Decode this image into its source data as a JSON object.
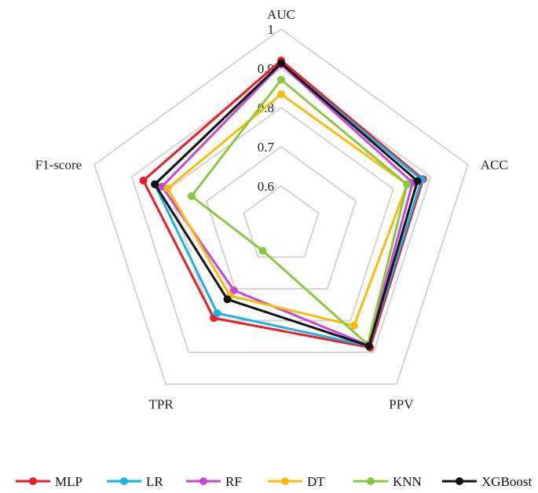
{
  "chart_data": {
    "type": "radar",
    "axes": [
      "AUC",
      "ACC",
      "PPV",
      "TPR",
      "F1-score"
    ],
    "rmin": 0.5,
    "rmax": 1.0,
    "ticks": [
      0.6,
      0.7,
      0.8,
      0.9,
      1
    ],
    "tick_labels": [
      "0.6",
      "0.7",
      "0.8",
      "0.9",
      "1"
    ],
    "grid": true,
    "legend_position": "bottom",
    "series": [
      {
        "name": "MLP",
        "color": "#ee1c25",
        "values": [
          0.92,
          0.88,
          0.885,
          0.792,
          0.869
        ]
      },
      {
        "name": "LR",
        "color": "#1ab2e8",
        "values": [
          0.912,
          0.876,
          0.88,
          0.777,
          0.839
        ]
      },
      {
        "name": "RF",
        "color": "#c746d6",
        "values": [
          0.91,
          0.852,
          0.878,
          0.705,
          0.819
        ]
      },
      {
        "name": "DT",
        "color": "#fbbb0d",
        "values": [
          0.834,
          0.837,
          0.816,
          0.722,
          0.804
        ]
      },
      {
        "name": "KNN",
        "color": "#8dc63f",
        "values": [
          0.871,
          0.837,
          0.875,
          0.58,
          0.74
        ]
      },
      {
        "name": "XGBoost",
        "color": "#111111",
        "values": [
          0.913,
          0.865,
          0.88,
          0.733,
          0.838
        ]
      }
    ]
  }
}
